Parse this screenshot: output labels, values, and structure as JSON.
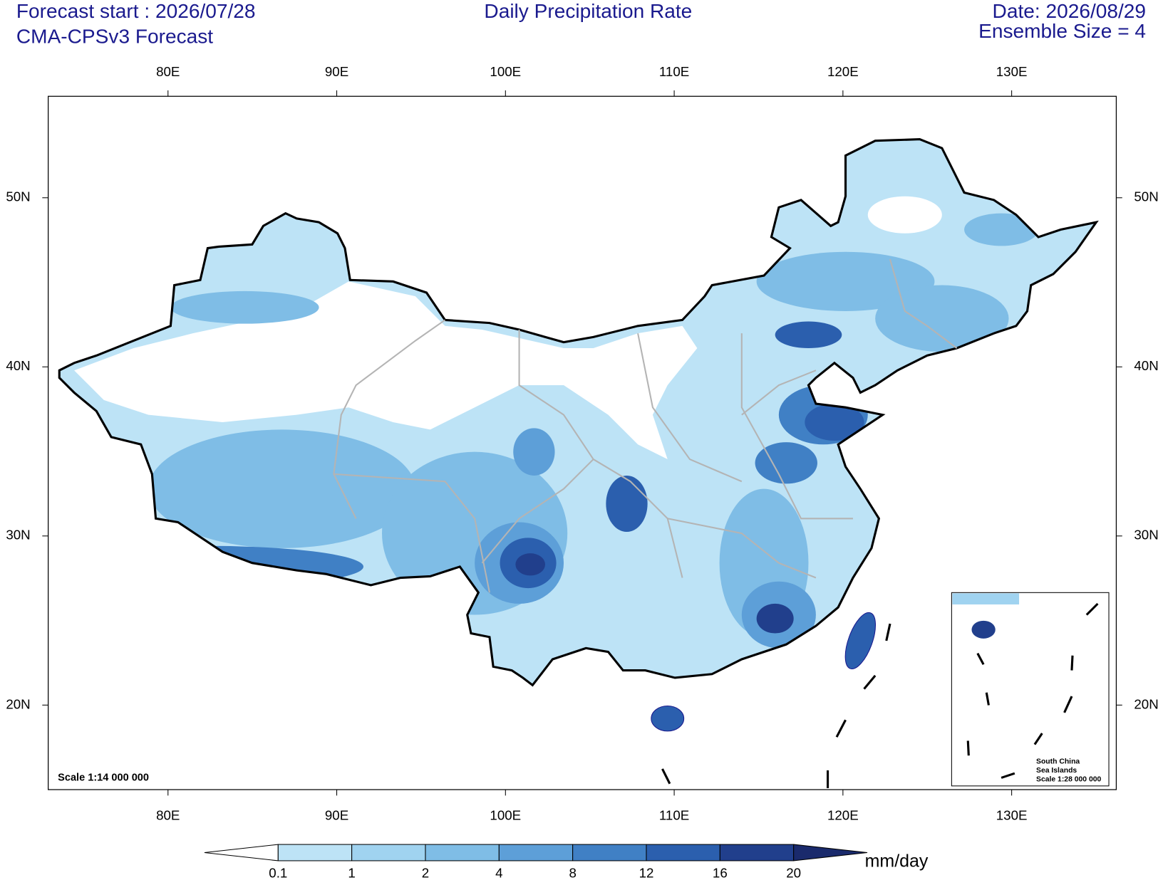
{
  "header": {
    "forecast_start": "Forecast start : 2026/07/28",
    "model": "CMA-CPSv3 Forecast",
    "title": "Daily Precipitation Rate",
    "date": "Date: 2026/08/29",
    "ensemble": "Ensemble Size = 4"
  },
  "map": {
    "xlim": [
      72.9,
      136.2
    ],
    "ylim": [
      15,
      56
    ],
    "xticks": [
      {
        "value": 80,
        "label": "80E"
      },
      {
        "value": 90,
        "label": "90E"
      },
      {
        "value": 100,
        "label": "100E"
      },
      {
        "value": 110,
        "label": "110E"
      },
      {
        "value": 120,
        "label": "120E"
      },
      {
        "value": 130,
        "label": "130E"
      }
    ],
    "yticks": [
      {
        "value": 20,
        "label": "20N"
      },
      {
        "value": 30,
        "label": "30N"
      },
      {
        "value": 40,
        "label": "40N"
      },
      {
        "value": 50,
        "label": "50N"
      }
    ],
    "scale": "Scale 1:14 000 000",
    "inset": {
      "lines": [
        "South China",
        "Sea Islands",
        "Scale 1:28 000 000"
      ]
    }
  },
  "colorbar": {
    "levels": [
      0.1,
      1,
      2,
      4,
      8,
      12,
      16,
      20
    ],
    "colors": [
      "#ffffff",
      "#bde3f6",
      "#a0d3f0",
      "#7fbde6",
      "#5d9fd8",
      "#4080c5",
      "#2b5fae",
      "#213f8c",
      "#1a2a6c"
    ],
    "unit": "mm/day"
  }
}
